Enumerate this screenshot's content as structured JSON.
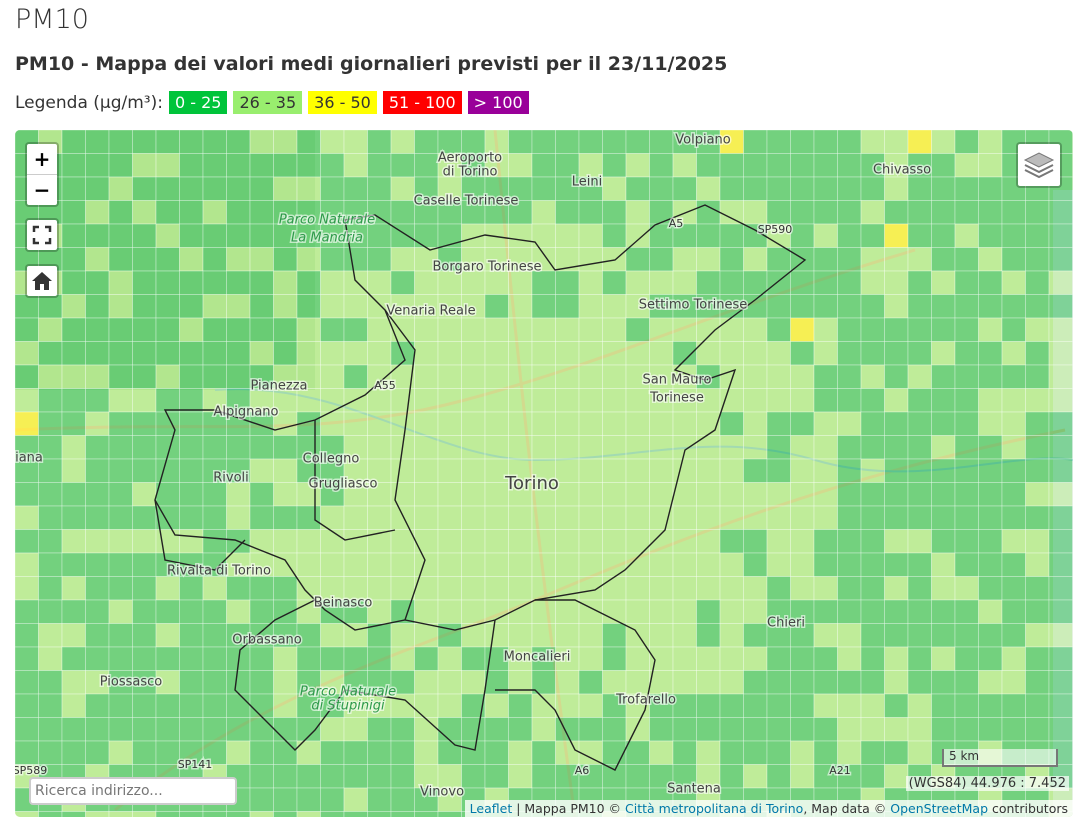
{
  "header": {
    "title": "PM10",
    "subtitle": "PM10 - Mappa dei valori medi giornalieri previsti per il 23/11/2025"
  },
  "legend": {
    "label": "Legenda (µg/m³):",
    "classes": [
      {
        "label": "0 - 25",
        "color": "#00c43a"
      },
      {
        "label": "26 - 35",
        "color": "#99ee6e"
      },
      {
        "label": "36 - 50",
        "color": "#ffff00"
      },
      {
        "label": "51 - 100",
        "color": "#ff0000"
      },
      {
        "label": "> 100",
        "color": "#990099"
      }
    ]
  },
  "map": {
    "zoom_in": "+",
    "zoom_out": "−",
    "places": [
      "Volpiano",
      "Aeroporto",
      "di Torino",
      "Leini",
      "Chivasso",
      "Caselle Torinese",
      "Parco Naturale",
      "La Mandria",
      "Borgaro Torinese",
      "Settimo Torinese",
      "Venaria Reale",
      "San Mauro",
      "Torinese",
      "Pianezza",
      "Alpignano",
      "Collegno",
      "Rivoli",
      "Grugliasco",
      "Torino",
      "Rivalta di Torino",
      "Beinasco",
      "Chieri",
      "Orbassano",
      "Moncalieri",
      "Piossasco",
      "Parco Naturale",
      "di Stupinigi",
      "Trofarello",
      "Vinovo",
      "Santena",
      "iana",
      "A55",
      "A5",
      "SP590",
      "A6",
      "A21",
      "SP141",
      "SP589"
    ],
    "scale": "5 km",
    "coordinates": "(WGS84) 44.976 : 7.452",
    "search_placeholder": "Ricerca indirizzo...",
    "attribution": {
      "leaflet": "Leaflet",
      "text1": "| Mappa PM10 ©",
      "cmt": "Città metropolitana di Torino",
      "text2": ", Map data ©",
      "osm": "OpenStreetMap",
      "text3": "contributors"
    }
  }
}
